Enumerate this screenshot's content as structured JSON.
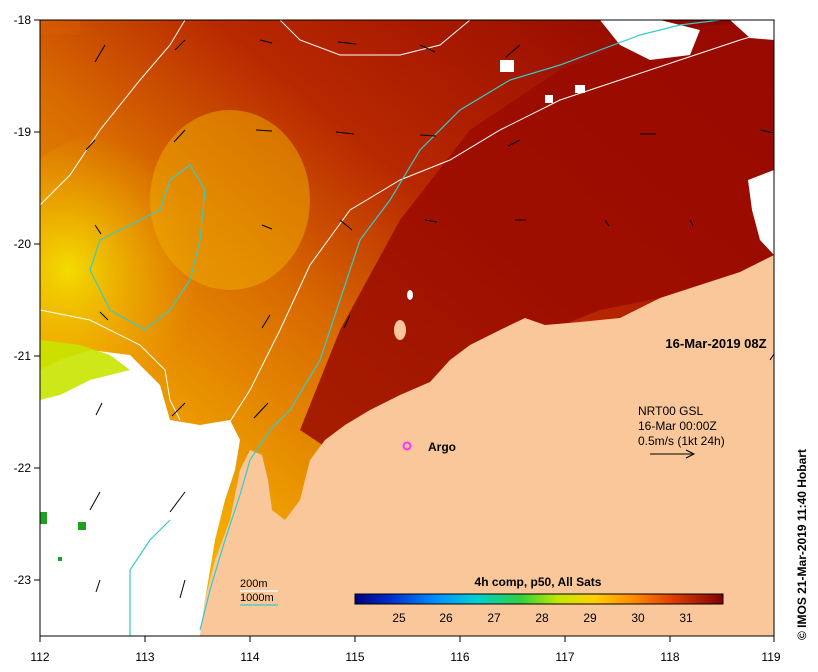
{
  "map": {
    "date_label": "16-Mar-2019 08Z",
    "credit": "©  IMOS 21-Mar-2019 11:40 Hobart",
    "lon_ticks": [
      "112",
      "113",
      "114",
      "115",
      "116",
      "117",
      "118",
      "119"
    ],
    "lat_ticks": [
      "-18",
      "-19",
      "-20",
      "-21",
      "-22",
      "-23"
    ],
    "argo": {
      "label": "Argo",
      "color": "#ff33ff"
    },
    "current_legend": {
      "line1": "NRT00 GSL",
      "line2": "16-Mar 00:00Z",
      "line3": "0.5m/s (1kt 24h)"
    },
    "isobath_legend": {
      "line_200": "200m",
      "line_1000": "1000m",
      "color_200": "#ffffff",
      "color_1000": "#33cccc"
    },
    "colorbar": {
      "title": "4h comp, p50, All Sats",
      "tick_labels": [
        "25",
        "26",
        "27",
        "28",
        "29",
        "30",
        "31"
      ],
      "colors": [
        "#00007f",
        "#0050ff",
        "#00c8ff",
        "#20d080",
        "#90e000",
        "#f0f000",
        "#ffb000",
        "#ff6000",
        "#e03000",
        "#a00000",
        "#7a0000"
      ]
    },
    "land_color": "#f9c79a"
  }
}
